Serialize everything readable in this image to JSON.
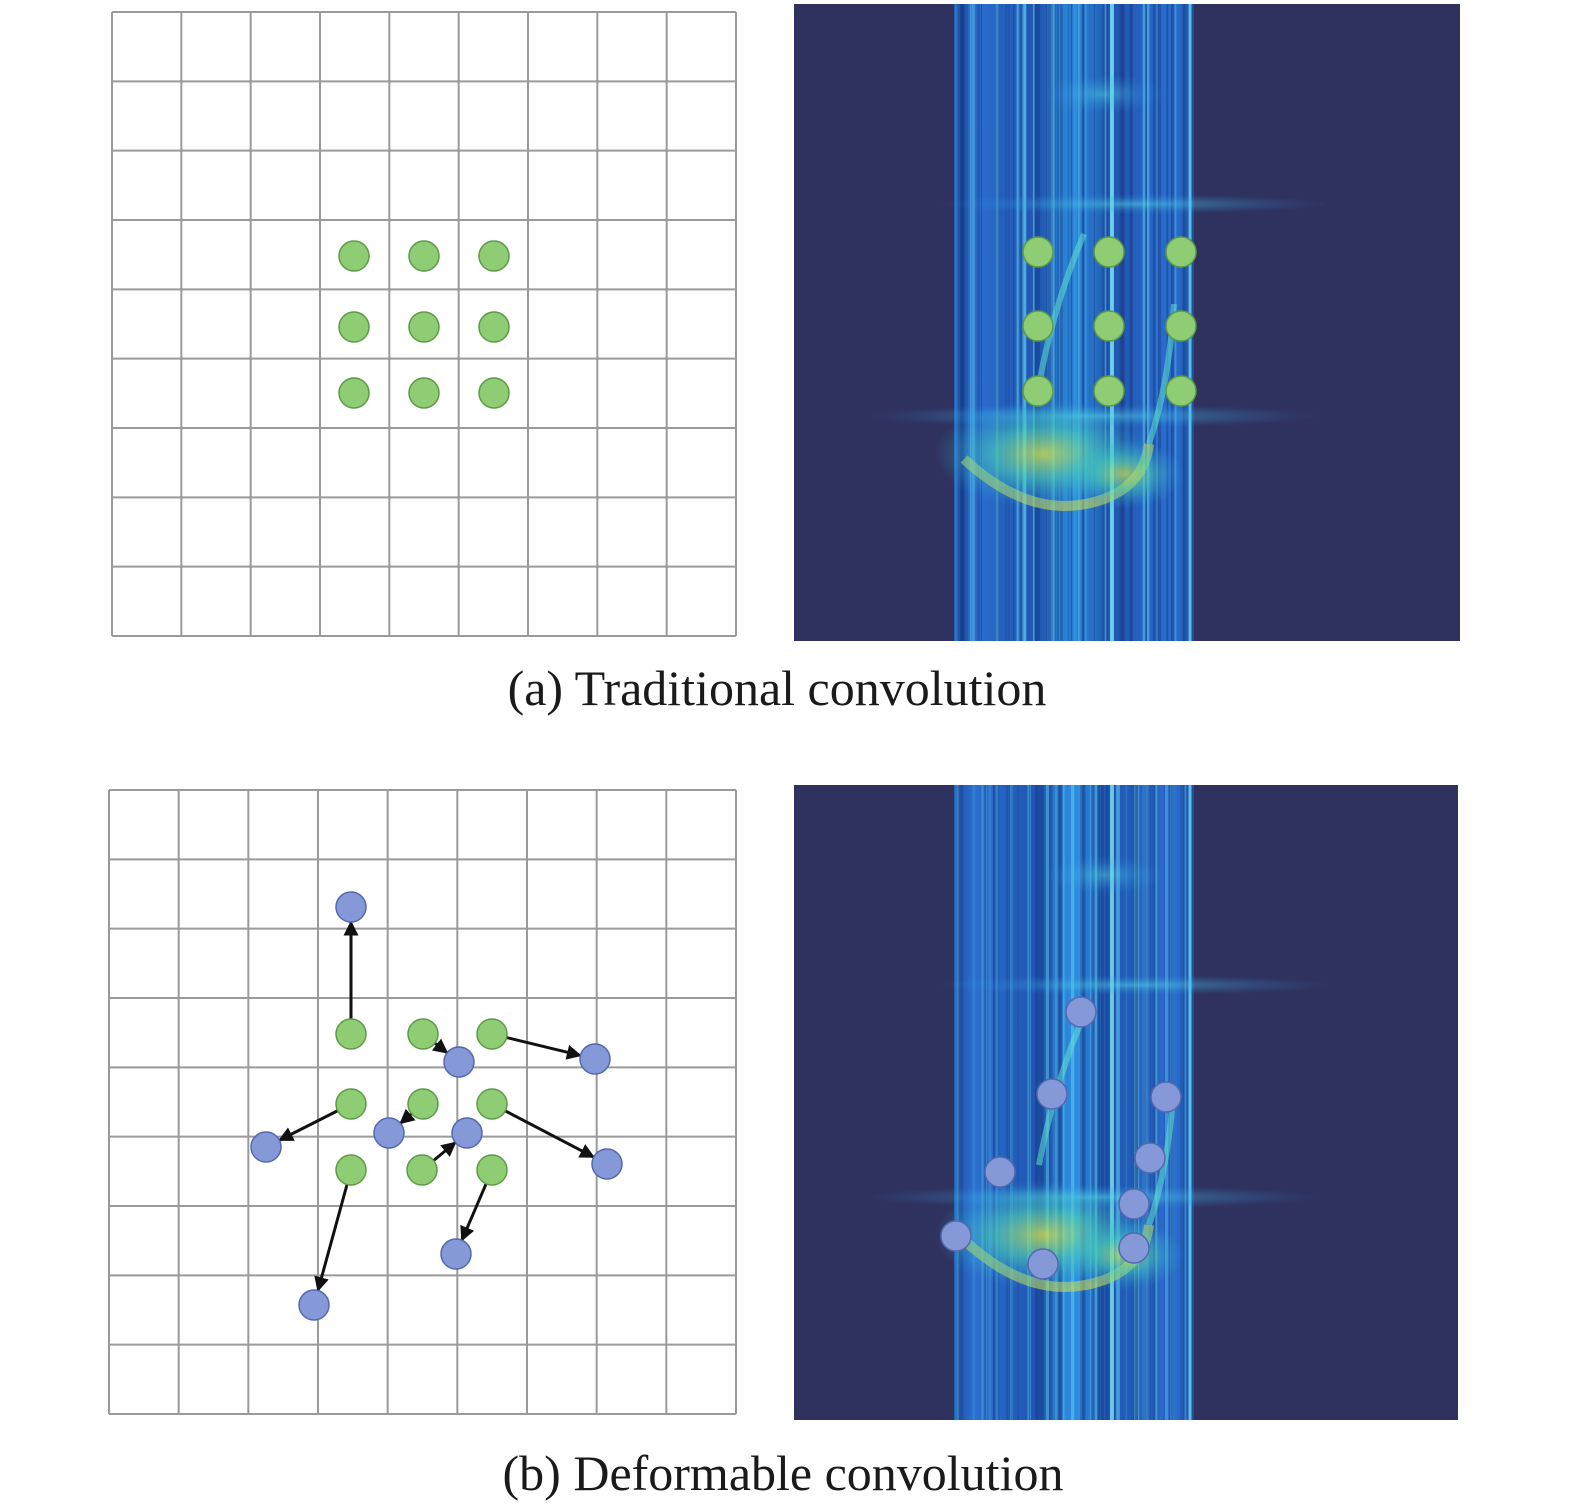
{
  "panels": [
    {
      "id": "a",
      "caption": "(a) Traditional convolution"
    },
    {
      "id": "b",
      "caption": "(b) Deformable convolution"
    }
  ],
  "colors": {
    "grid_line": "#9a9a9a",
    "sample_green": "#8fcd74",
    "sample_green_stroke": "#5d9a47",
    "sample_blue": "#8598d8",
    "sample_blue_stroke": "#5468b0",
    "offset_arrow": "#111111",
    "spectrogram_background": "#2f315e"
  }
}
